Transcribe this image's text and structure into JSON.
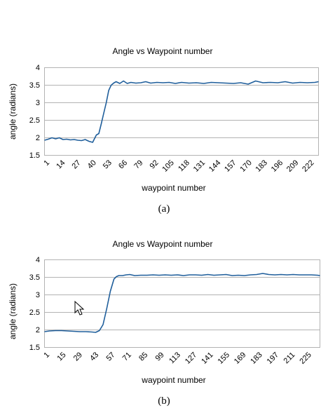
{
  "chart_data": [
    {
      "type": "line",
      "title": "Angle vs Waypoint number",
      "xlabel": "waypoint number",
      "ylabel": "angle (radians)",
      "ylim": [
        1.5,
        4
      ],
      "yticks": [
        "1.5",
        "2",
        "2.5",
        "3",
        "3.5",
        "4"
      ],
      "xlim": [
        1,
        223
      ],
      "xticks": [
        "1",
        "14",
        "27",
        "40",
        "53",
        "66",
        "79",
        "92",
        "105",
        "118",
        "131",
        "144",
        "157",
        "170",
        "183",
        "196",
        "209",
        "222"
      ],
      "caption": "(a)",
      "grid": true,
      "series": [
        {
          "color": "#1f5e9b",
          "x": [
            1,
            4,
            7,
            10,
            13,
            16,
            19,
            22,
            25,
            28,
            31,
            34,
            37,
            40,
            43,
            45,
            47,
            49,
            51,
            53,
            55,
            57,
            59,
            62,
            65,
            68,
            71,
            75,
            79,
            83,
            87,
            92,
            97,
            102,
            107,
            112,
            118,
            124,
            130,
            136,
            142,
            148,
            154,
            160,
            166,
            172,
            178,
            184,
            190,
            196,
            202,
            208,
            214,
            220,
            223
          ],
          "y": [
            1.93,
            1.96,
            2.0,
            1.97,
            2.0,
            1.95,
            1.96,
            1.94,
            1.95,
            1.93,
            1.92,
            1.95,
            1.9,
            1.87,
            2.08,
            2.12,
            2.4,
            2.7,
            3.0,
            3.35,
            3.5,
            3.56,
            3.6,
            3.55,
            3.62,
            3.55,
            3.58,
            3.56,
            3.57,
            3.6,
            3.56,
            3.58,
            3.57,
            3.58,
            3.55,
            3.58,
            3.56,
            3.57,
            3.55,
            3.58,
            3.57,
            3.56,
            3.55,
            3.57,
            3.53,
            3.62,
            3.57,
            3.58,
            3.57,
            3.6,
            3.56,
            3.58,
            3.57,
            3.58,
            3.6
          ]
        }
      ]
    },
    {
      "type": "line",
      "title": "Angle vs Waypoint number",
      "xlabel": "waypoint number",
      "ylabel": "angle (radians)",
      "ylim": [
        1.5,
        4
      ],
      "yticks": [
        "1.5",
        "2",
        "2.5",
        "3",
        "3.5",
        "4"
      ],
      "xlim": [
        1,
        227
      ],
      "xticks": [
        "1",
        "15",
        "29",
        "43",
        "57",
        "71",
        "85",
        "99",
        "113",
        "127",
        "141",
        "155",
        "169",
        "183",
        "197",
        "211",
        "225"
      ],
      "caption": "(b)",
      "grid": true,
      "series": [
        {
          "color": "#1f5e9b",
          "x": [
            1,
            5,
            10,
            15,
            20,
            25,
            30,
            35,
            40,
            43,
            46,
            49,
            52,
            55,
            58,
            60,
            62,
            65,
            68,
            71,
            75,
            80,
            85,
            90,
            95,
            100,
            105,
            110,
            115,
            120,
            125,
            130,
            135,
            140,
            145,
            150,
            155,
            160,
            165,
            170,
            175,
            180,
            185,
            190,
            195,
            200,
            205,
            210,
            215,
            220,
            225,
            227
          ],
          "y": [
            1.95,
            1.97,
            1.98,
            1.98,
            1.97,
            1.96,
            1.95,
            1.95,
            1.94,
            1.93,
            1.98,
            2.15,
            2.6,
            3.1,
            3.45,
            3.52,
            3.55,
            3.55,
            3.57,
            3.58,
            3.55,
            3.56,
            3.56,
            3.57,
            3.56,
            3.57,
            3.56,
            3.57,
            3.55,
            3.57,
            3.57,
            3.56,
            3.58,
            3.56,
            3.57,
            3.58,
            3.55,
            3.56,
            3.55,
            3.57,
            3.58,
            3.61,
            3.58,
            3.57,
            3.58,
            3.57,
            3.58,
            3.57,
            3.57,
            3.57,
            3.56,
            3.55
          ]
        }
      ]
    }
  ]
}
